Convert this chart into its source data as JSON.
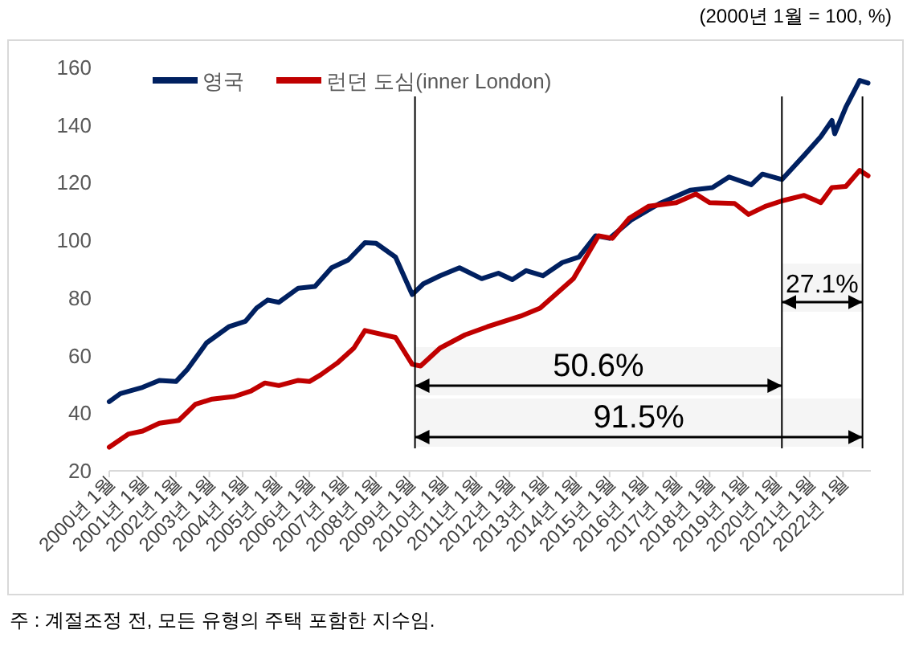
{
  "chart_data": {
    "type": "line",
    "x": [
      "2000-01",
      "2000-05",
      "2001-01",
      "2001-07",
      "2002-01",
      "2002-05",
      "2002-12",
      "2003-08",
      "2004-02",
      "2004-06",
      "2004-10",
      "2005-02",
      "2005-09",
      "2006-03",
      "2006-09",
      "2007-03",
      "2007-09",
      "2008-01",
      "2008-08",
      "2009-02",
      "2009-06",
      "2009-12",
      "2010-07",
      "2011-03",
      "2011-09",
      "2012-02",
      "2012-07",
      "2013-01",
      "2013-08",
      "2014-02",
      "2014-08",
      "2015-01",
      "2015-09",
      "2016-07",
      "2017-06",
      "2018-02",
      "2018-08",
      "2019-04",
      "2019-08",
      "2020-03",
      "2020-11",
      "2021-05",
      "2021-09",
      "2021-10",
      "2022-02",
      "2022-07",
      "2022-10"
    ],
    "series": [
      {
        "name": "영국",
        "color": "#002060",
        "values": [
          44,
          46.8,
          49,
          51.4,
          51,
          55.1,
          64.4,
          70,
          71.9,
          76.5,
          79.3,
          78.5,
          83.4,
          84,
          90.5,
          93.2,
          99.2,
          99,
          94.2,
          81.2,
          84.9,
          87.7,
          90.5,
          86.7,
          88.6,
          86.4,
          89.5,
          87.7,
          92.3,
          94.2,
          101.6,
          100.7,
          107.2,
          112.8,
          117.4,
          118.3,
          122,
          119.3,
          123,
          121.1,
          129.5,
          136,
          141.6,
          137,
          146.2,
          155.5,
          154.6
        ]
      },
      {
        "name": "런던 도심(inner London)",
        "color": "#c00000",
        "x": [
          "2000-01",
          "2000-08",
          "2001-01",
          "2001-07",
          "2002-02",
          "2002-08",
          "2003-02",
          "2003-10",
          "2004-04",
          "2004-09",
          "2005-02",
          "2005-09",
          "2006-01",
          "2006-05",
          "2006-11",
          "2007-05",
          "2007-09",
          "2008-08",
          "2009-02",
          "2009-05",
          "2009-12",
          "2010-09",
          "2011-05",
          "2012-05",
          "2012-12",
          "2013-12",
          "2014-09",
          "2015-02",
          "2015-08",
          "2016-03",
          "2017-01",
          "2017-08",
          "2018-01",
          "2018-10",
          "2019-03",
          "2019-09",
          "2020-03",
          "2020-11",
          "2021-05",
          "2021-09",
          "2022-02",
          "2022-07",
          "2022-10"
        ],
        "values": [
          28.2,
          32.8,
          33.8,
          36.5,
          37.5,
          43.1,
          44.9,
          45.8,
          47.7,
          50.5,
          49.6,
          51.4,
          51,
          53.3,
          57.4,
          62.6,
          68.7,
          66.3,
          57,
          56.4,
          62.6,
          67.2,
          70,
          73.7,
          76.5,
          86.7,
          101.6,
          100.7,
          107.6,
          111.8,
          113.1,
          116.1,
          113.1,
          112.8,
          109,
          111.8,
          113.7,
          115.6,
          113.1,
          118.3,
          118.7,
          124.3,
          122.4
        ]
      }
    ],
    "xlim": [
      "2000-01",
      "2022-11"
    ],
    "xticks": [
      {
        "value": "2000-01",
        "label": "2000년 1월"
      },
      {
        "value": "2001-01",
        "label": "2001년 1월"
      },
      {
        "value": "2002-01",
        "label": "2002년 1월"
      },
      {
        "value": "2003-01",
        "label": "2003년 1월"
      },
      {
        "value": "2004-01",
        "label": "2004년 1월"
      },
      {
        "value": "2005-01",
        "label": "2005년 1월"
      },
      {
        "value": "2006-01",
        "label": "2006년 1월"
      },
      {
        "value": "2007-01",
        "label": "2007년 1월"
      },
      {
        "value": "2008-01",
        "label": "2008년 1월"
      },
      {
        "value": "2009-01",
        "label": "2009년 1월"
      },
      {
        "value": "2010-01",
        "label": "2010년 1월"
      },
      {
        "value": "2011-01",
        "label": "2011년 1월"
      },
      {
        "value": "2012-01",
        "label": "2012년 1월"
      },
      {
        "value": "2013-01",
        "label": "2013년 1월"
      },
      {
        "value": "2014-01",
        "label": "2014년 1월"
      },
      {
        "value": "2015-01",
        "label": "2015년 1월"
      },
      {
        "value": "2016-01",
        "label": "2016년 1월"
      },
      {
        "value": "2017-01",
        "label": "2017년 1월"
      },
      {
        "value": "2018-01",
        "label": "2018년 1월"
      },
      {
        "value": "2019-01",
        "label": "2019년 1월"
      },
      {
        "value": "2020-01",
        "label": "2020년 1월"
      },
      {
        "value": "2021-01",
        "label": "2021년 1월"
      },
      {
        "value": "2022-01",
        "label": "2022년 1월"
      }
    ],
    "ylim": [
      20,
      160
    ],
    "yticks": [
      20,
      40,
      60,
      80,
      100,
      120,
      140,
      160
    ],
    "legend": "top left",
    "ref_lines": [
      {
        "axis": "x",
        "value": "2009-03"
      },
      {
        "axis": "x",
        "value": "2020-03"
      },
      {
        "axis": "x",
        "value": "2022-08"
      }
    ],
    "bands": [
      {
        "axis": "x",
        "from": "2009-03",
        "to": "2020-03",
        "label": "50.6%"
      },
      {
        "axis": "x",
        "from": "2020-03",
        "to": "2022-08",
        "label": "27.1%"
      },
      {
        "axis": "x",
        "from": "2009-03",
        "to": "2022-08",
        "label": "91.5%"
      }
    ],
    "annotations": [
      "(2000년 1월 = 100, %)",
      "주 : 계절조정 전, 모든 유형의 주택 포함한 지수임."
    ]
  }
}
